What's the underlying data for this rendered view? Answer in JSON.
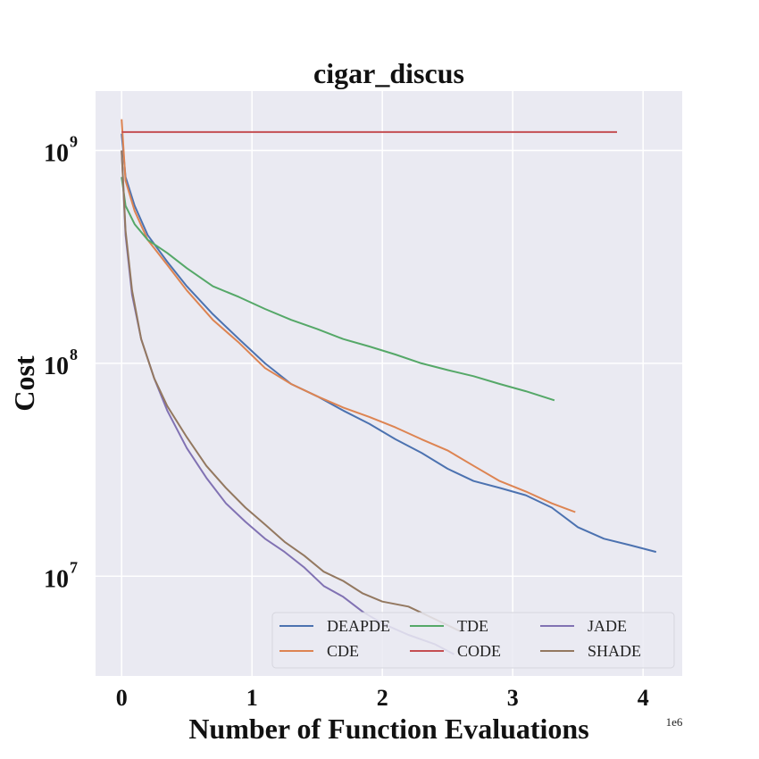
{
  "chart_data": {
    "type": "line",
    "title": "cigar_discus",
    "xlabel": "Number of Function Evaluations",
    "ylabel": "Cost",
    "x_offset_label": "1e6",
    "xscale": "linear",
    "yscale": "log",
    "xlim": [
      -0.2,
      4.3
    ],
    "ylim": [
      3400000,
      1900000000
    ],
    "xticks": [
      0,
      1,
      2,
      3,
      4
    ],
    "xtick_labels": [
      "0",
      "1",
      "2",
      "3",
      "4"
    ],
    "yticks": [
      10000000,
      100000000,
      1000000000
    ],
    "ytick_labels": [
      {
        "base": "10",
        "exp": "7"
      },
      {
        "base": "10",
        "exp": "8"
      },
      {
        "base": "10",
        "exp": "9"
      }
    ],
    "grid": true,
    "legend_position": "lower-right",
    "legend_columns": 3,
    "colors": {
      "background": "#eaeaf2",
      "grid": "#ffffff"
    },
    "series": [
      {
        "name": "DEAPDE",
        "color": "#4c72b0",
        "x": [
          0,
          0.03,
          0.1,
          0.2,
          0.35,
          0.5,
          0.7,
          0.9,
          1.1,
          1.3,
          1.5,
          1.7,
          1.9,
          2.1,
          2.3,
          2.5,
          2.7,
          2.9,
          3.1,
          3.3,
          3.5,
          3.7,
          3.9,
          4.1
        ],
        "y": [
          1200000000,
          750000000,
          550000000,
          400000000,
          300000000,
          230000000,
          170000000,
          130000000,
          100000000,
          80000000,
          70000000,
          60000000,
          52000000,
          44000000,
          38000000,
          32000000,
          28000000,
          26000000,
          24000000,
          21000000,
          17000000,
          15000000,
          14000000,
          13000000
        ]
      },
      {
        "name": "CDE",
        "color": "#dd8452",
        "x": [
          0,
          0.03,
          0.1,
          0.2,
          0.35,
          0.5,
          0.7,
          0.9,
          1.1,
          1.3,
          1.5,
          1.7,
          1.9,
          2.1,
          2.3,
          2.5,
          2.7,
          2.9,
          3.1,
          3.3,
          3.48
        ],
        "y": [
          1400000000,
          720000000,
          520000000,
          380000000,
          290000000,
          220000000,
          160000000,
          125000000,
          95000000,
          80000000,
          70000000,
          62000000,
          56000000,
          50000000,
          44000000,
          39000000,
          33000000,
          28000000,
          25000000,
          22000000,
          20000000
        ]
      },
      {
        "name": "TDE",
        "color": "#55a868",
        "x": [
          0,
          0.03,
          0.1,
          0.2,
          0.35,
          0.5,
          0.7,
          0.9,
          1.1,
          1.3,
          1.5,
          1.7,
          1.9,
          2.1,
          2.3,
          2.5,
          2.7,
          2.9,
          3.1,
          3.32
        ],
        "y": [
          750000000,
          550000000,
          450000000,
          380000000,
          330000000,
          280000000,
          230000000,
          205000000,
          180000000,
          160000000,
          145000000,
          130000000,
          120000000,
          110000000,
          100000000,
          93000000,
          87000000,
          80000000,
          74000000,
          67000000
        ]
      },
      {
        "name": "CODE",
        "color": "#c44e52",
        "x": [
          0,
          3.8
        ],
        "y": [
          1220000000,
          1220000000
        ]
      },
      {
        "name": "JADE",
        "color": "#8172b3",
        "x": [
          0,
          0.03,
          0.08,
          0.15,
          0.25,
          0.35,
          0.5,
          0.65,
          0.8,
          0.95,
          1.1,
          1.25,
          1.4,
          1.55,
          1.7,
          1.85,
          2.0,
          2.2,
          2.4,
          2.55
        ],
        "y": [
          1000000000,
          400000000,
          210000000,
          130000000,
          85000000,
          60000000,
          40000000,
          29000000,
          22000000,
          18000000,
          15000000,
          13000000,
          11000000,
          9000000,
          8000000,
          6800000,
          6000000,
          5300000,
          4800000,
          4300000
        ]
      },
      {
        "name": "SHADE",
        "color": "#937860",
        "x": [
          0,
          0.03,
          0.08,
          0.15,
          0.25,
          0.35,
          0.5,
          0.65,
          0.8,
          0.95,
          1.1,
          1.25,
          1.4,
          1.55,
          1.7,
          1.85,
          2.0,
          2.2,
          2.4,
          2.6
        ],
        "y": [
          1000000000,
          420000000,
          220000000,
          130000000,
          85000000,
          63000000,
          45000000,
          33000000,
          26000000,
          21000000,
          17500000,
          14500000,
          12500000,
          10500000,
          9500000,
          8300000,
          7600000,
          7200000,
          6300000,
          5500000
        ]
      }
    ]
  }
}
